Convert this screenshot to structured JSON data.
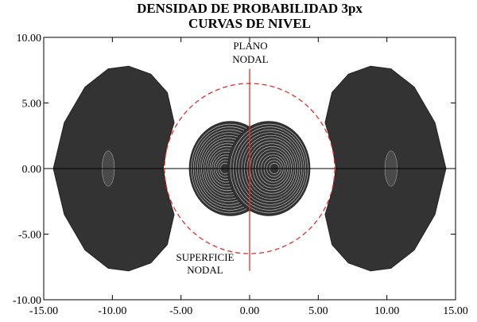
{
  "chart_data": {
    "type": "contour",
    "title": "DENSIDAD DE PROBABILIDAD 3px",
    "subtitle": "CURVAS DE NIVEL",
    "xlabel": "",
    "ylabel": "",
    "xlim": [
      -15,
      15
    ],
    "ylim": [
      -10,
      10
    ],
    "x_ticks": [
      -15,
      -10,
      -5,
      0,
      5,
      10,
      15
    ],
    "y_ticks": [
      -10,
      -5,
      0,
      5,
      10
    ],
    "x_tick_labels": [
      "-15.00",
      "-10.00",
      "-5.00",
      "0.00",
      "5.00",
      "10.00",
      "15.00"
    ],
    "y_tick_labels": [
      "-10.00",
      "-5.00",
      "0.00",
      "5.00",
      "10.00"
    ],
    "nodal_sphere_radius": 6.2,
    "nodal_plane_x": 0,
    "inner_lobe_centers": [
      [
        -1.8,
        0
      ],
      [
        1.8,
        0
      ]
    ],
    "outer_lobe_centers": [
      [
        -10.3,
        0
      ],
      [
        10.3,
        0
      ]
    ],
    "annotations": {
      "plane": [
        "PLANO",
        "NODAL"
      ],
      "surface": [
        "SUPERFICIE",
        "NODAL"
      ]
    },
    "colors": {
      "fill": "#333333",
      "contour": "#bbbbbb",
      "nodal": "#dd3030",
      "axis": "#000000"
    },
    "grid": false
  }
}
